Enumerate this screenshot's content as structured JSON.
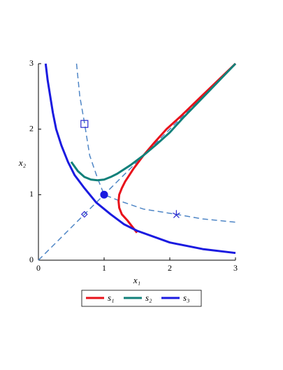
{
  "chart_data": {
    "type": "line",
    "x_label": "x₁",
    "y_label": "x₂",
    "xlim": [
      0,
      3
    ],
    "ylim": [
      0,
      3
    ],
    "xticks": [
      0,
      1,
      2,
      3
    ],
    "yticks": [
      0,
      1,
      2,
      3
    ],
    "series": [
      {
        "name": "s₁",
        "color": "#e8111a",
        "x": [
          1.5,
          1.36,
          1.27,
          1.23,
          1.22,
          1.23,
          1.27,
          1.32,
          1.45,
          1.6,
          1.77,
          1.95,
          2.17,
          2.48,
          3.0
        ],
        "values": [
          0.42,
          0.6,
          0.7,
          0.8,
          0.9,
          1.0,
          1.1,
          1.2,
          1.4,
          1.6,
          1.8,
          2.0,
          2.2,
          2.5,
          3.0
        ]
      },
      {
        "name": "s₂",
        "color": "#11807a",
        "x": [
          0.5,
          0.6,
          0.7,
          0.8,
          0.9,
          1.0,
          1.1,
          1.2,
          1.4,
          1.6,
          1.8,
          2.0,
          2.2,
          2.5,
          3.0
        ],
        "values": [
          1.5,
          1.36,
          1.27,
          1.23,
          1.22,
          1.23,
          1.27,
          1.32,
          1.45,
          1.6,
          1.77,
          1.95,
          2.17,
          2.48,
          3.0
        ]
      },
      {
        "name": "s₃",
        "color": "#1a1ae0",
        "x": [
          0.11,
          0.14,
          0.18,
          0.22,
          0.27,
          0.35,
          0.45,
          0.55,
          0.7,
          0.88,
          1.1,
          1.3,
          1.5,
          2.0,
          2.5,
          3.0
        ],
        "values": [
          3.0,
          2.75,
          2.5,
          2.25,
          2.0,
          1.75,
          1.5,
          1.3,
          1.1,
          0.88,
          0.7,
          0.55,
          0.45,
          0.27,
          0.17,
          0.11
        ]
      }
    ],
    "guides": [
      {
        "color": "#4f86c6",
        "x": [
          0,
          3
        ],
        "values": [
          0,
          3
        ]
      },
      {
        "color": "#4f86c6",
        "x": [
          0.58,
          0.63,
          0.7,
          0.78,
          0.9,
          1.0,
          1.25,
          1.6,
          2.1,
          2.5,
          3.0
        ],
        "values": [
          3.0,
          2.5,
          2.1,
          1.6,
          1.25,
          1.0,
          0.9,
          0.78,
          0.7,
          0.63,
          0.58
        ]
      }
    ],
    "markers": [
      {
        "shape": "square",
        "color": "#2a2ad0",
        "x": 0.7,
        "y": 2.08
      },
      {
        "shape": "circle",
        "color": "#1a1ae0",
        "x": 1.0,
        "y": 1.0
      },
      {
        "shape": "diamond",
        "color": "#2a2ad0",
        "x": 0.7,
        "y": 0.7
      },
      {
        "shape": "star",
        "color": "#2a2ad0",
        "x": 2.1,
        "y": 0.7
      }
    ]
  }
}
